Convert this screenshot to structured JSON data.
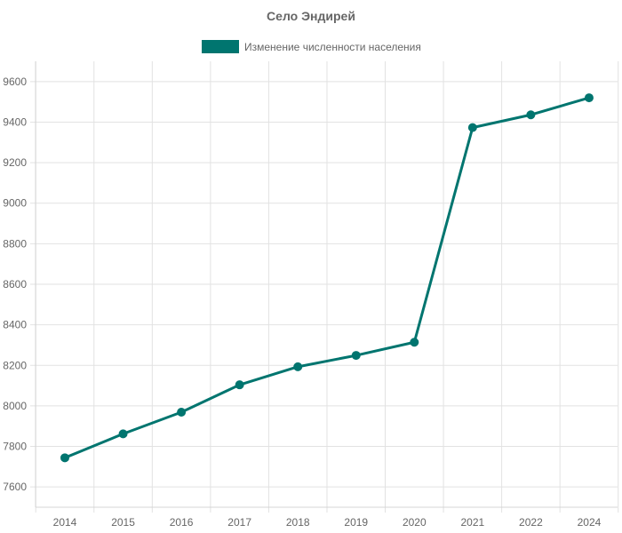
{
  "chart_data": {
    "type": "line",
    "title": "Село Эндирей",
    "x": [
      "2014",
      "2015",
      "2016",
      "2017",
      "2018",
      "2019",
      "2020",
      "2021",
      "2022",
      "2024"
    ],
    "series": [
      {
        "name": "Изменение численности населения",
        "values": [
          7744,
          7862,
          7969,
          8104,
          8193,
          8249,
          8314,
          9373,
          9436,
          9520
        ]
      }
    ],
    "ylim": [
      7500,
      9700
    ],
    "yticks": [
      7600,
      7800,
      8000,
      8200,
      8400,
      8600,
      8800,
      9000,
      9200,
      9400,
      9600
    ],
    "grid": true,
    "legend": "top-center",
    "colors": {
      "series": "#00756f",
      "grid": "#e2e2e2",
      "text": "#666666"
    }
  }
}
